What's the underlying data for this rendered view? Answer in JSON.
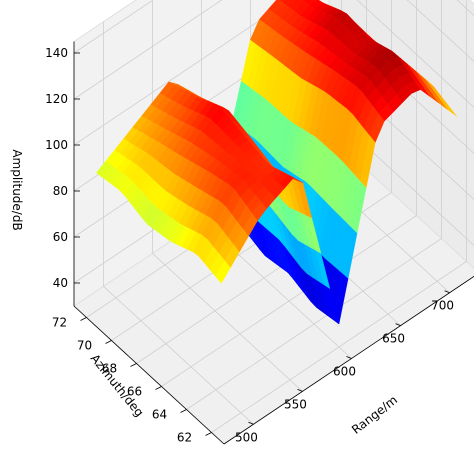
{
  "chart_data": {
    "type": "surface",
    "xlabel": "Range/m",
    "ylabel": "Azimuth/deg",
    "zlabel": "Amplitude/dB",
    "xticks": [
      500,
      550,
      600,
      650,
      700
    ],
    "yticks": [
      62,
      64,
      66,
      68,
      70,
      72
    ],
    "zticks": [
      40,
      60,
      80,
      100,
      120,
      140
    ],
    "xlim": [
      470,
      730
    ],
    "ylim": [
      61,
      73
    ],
    "zlim": [
      30,
      145
    ],
    "colormap": "jet",
    "grid": true,
    "surface_grid": {
      "range_m": [
        480,
        520,
        560,
        600,
        640,
        680,
        720
      ],
      "azimuth_deg": [
        62,
        64,
        66,
        68,
        70,
        72
      ],
      "amplitude_db": [
        [
          92,
          110,
          118,
          40,
          114,
          120,
          96
        ],
        [
          95,
          115,
          112,
          38,
          118,
          126,
          100
        ],
        [
          90,
          112,
          116,
          42,
          116,
          122,
          98
        ],
        [
          88,
          108,
          120,
          40,
          112,
          124,
          94
        ],
        [
          92,
          104,
          114,
          44,
          110,
          118,
          96
        ],
        [
          90,
          100,
          110,
          42,
          108,
          116,
          92
        ]
      ]
    }
  }
}
